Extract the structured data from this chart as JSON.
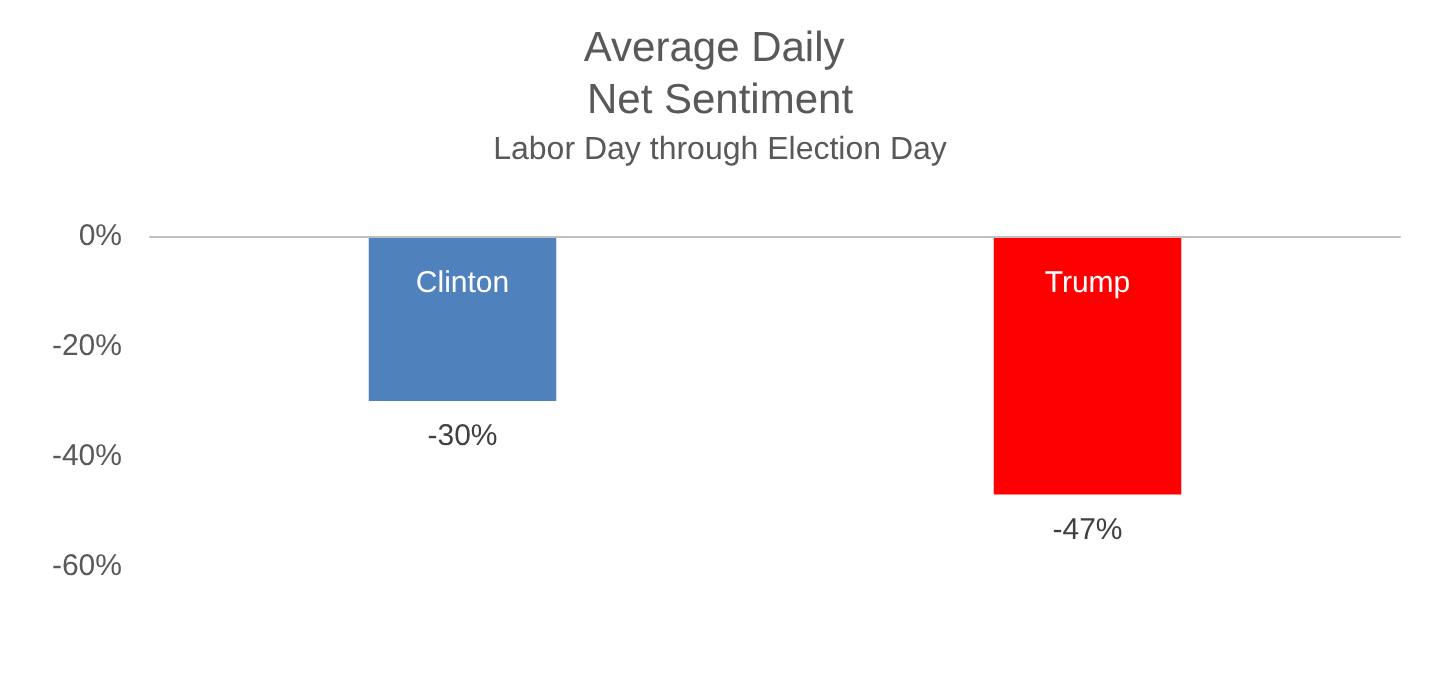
{
  "chart_data": {
    "type": "bar",
    "title": "Average Daily Net Sentiment",
    "subtitle": "Labor Day through Election Day",
    "categories": [
      "Clinton",
      "Trump"
    ],
    "values": [
      -30,
      -47
    ],
    "colors": [
      "#4f81bd",
      "#ff0000"
    ],
    "value_labels": [
      "-30%",
      "-47%"
    ],
    "ylim": [
      -60,
      0
    ],
    "yticks": [
      {
        "value": 0,
        "label": "0%"
      },
      {
        "value": -20,
        "label": "-20%"
      },
      {
        "value": -40,
        "label": "-40%"
      },
      {
        "value": -60,
        "label": "-60%"
      }
    ],
    "grid": false
  }
}
